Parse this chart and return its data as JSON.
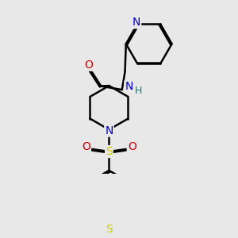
{
  "bg_color": "#e8e8e8",
  "atom_colors": {
    "N": "#0000cc",
    "O": "#cc0000",
    "S_sulfonyl": "#cccc00",
    "S_thio": "#cccc00",
    "H": "#008080",
    "C": "#000000"
  },
  "bond_color": "#000000",
  "bond_width": 1.8,
  "figsize": [
    3.0,
    3.0
  ],
  "dpi": 100
}
